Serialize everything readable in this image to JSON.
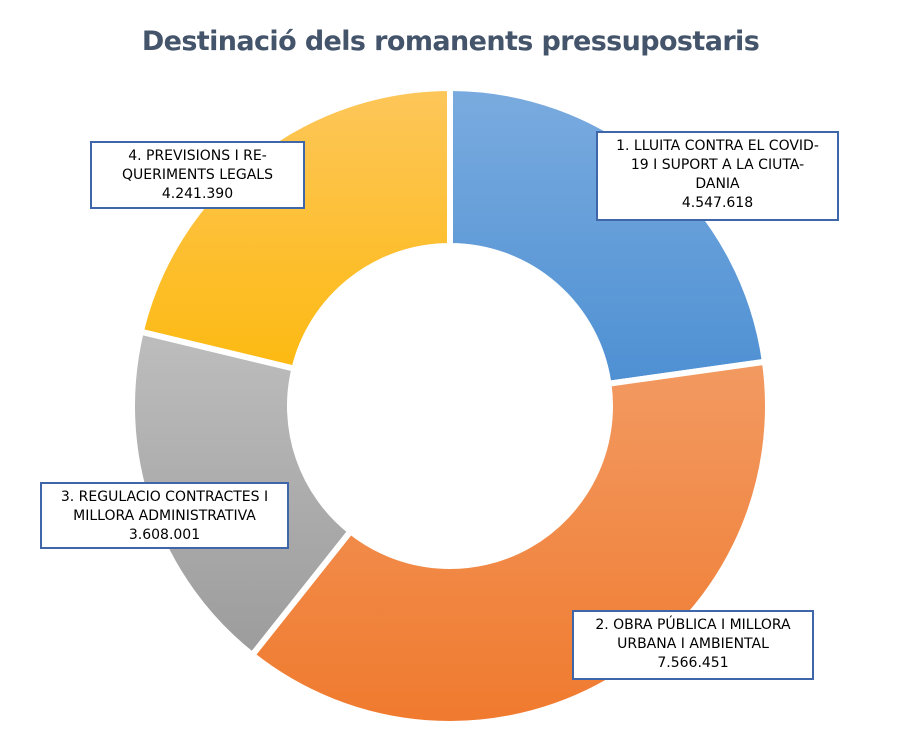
{
  "chart_data": {
    "type": "donut",
    "title": "Destinació dels romanents pressupostaris",
    "series": [
      {
        "name": "Destinació dels romanents pressupostaris",
        "categories": [
          "1. LLUITA CONTRA EL COVID-19 I SUPORT A LA CIUTADANIA",
          "2. OBRA PÚBLICA I MILLORA URBANA I AMBIENTAL",
          "3. REGULACIO CONTRACTES I MILLORA ADMINISTRATIVA",
          "4. PREVISIONS I REQUERIMENTS LEGALS"
        ],
        "values": [
          4547618,
          7566451,
          3608001,
          4241390
        ]
      }
    ],
    "slices": [
      {
        "label_lines": [
          "1. LLUITA CONTRA EL COVID-",
          "19 I SUPORT A LA CIUTA-",
          "DANIA"
        ],
        "value_label": "4.547.618",
        "value": 4547618,
        "color_light": "#7aabdf",
        "color_dark": "#4e90d3"
      },
      {
        "label_lines": [
          "2. OBRA PÚBLICA I MILLORA",
          "URBANA I AMBIENTAL"
        ],
        "value_label": "7.566.451",
        "value": 7566451,
        "color_light": "#f29a62",
        "color_dark": "#f07a2e"
      },
      {
        "label_lines": [
          "3. REGULACIO CONTRACTES I",
          "MILLORA ADMINISTRATIVA"
        ],
        "value_label": "3.608.001",
        "value": 3608001,
        "color_light": "#bdbdbd",
        "color_dark": "#9c9c9c"
      },
      {
        "label_lines": [
          "4. PREVISIONS I RE-",
          "QUERIMENTS LEGALS"
        ],
        "value_label": "4.241.390",
        "value": 4241390,
        "color_light": "#fdc65a",
        "color_dark": "#fdba12"
      }
    ],
    "start_angle": "12 o'clock",
    "direction": "clockwise",
    "legend": "none",
    "data_labels": "boxed callouts"
  }
}
